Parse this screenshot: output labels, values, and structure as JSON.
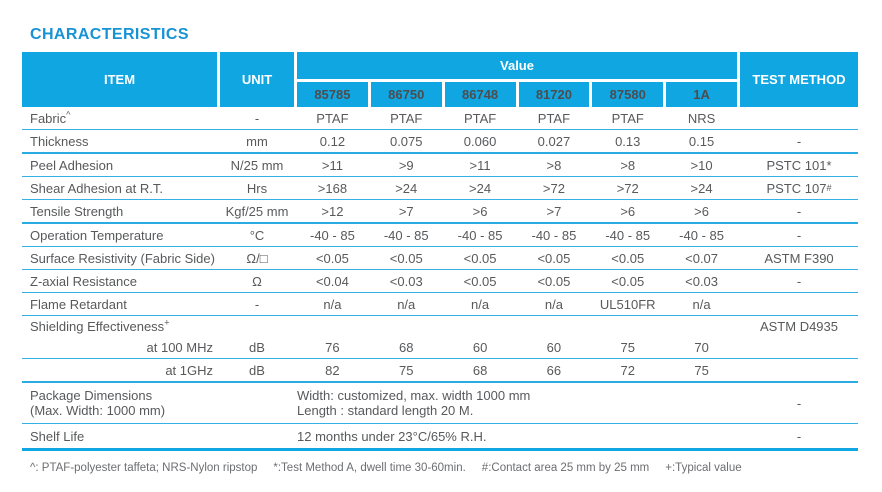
{
  "title": "CHARACTERISTICS",
  "colors": {
    "accent_cyan": "#10A6E2",
    "title_cyan": "#1793D5",
    "header_code_text": "#4D4D4F",
    "body_text": "#58595B"
  },
  "table": {
    "header": {
      "item": "ITEM",
      "unit": "UNIT",
      "value": "Value",
      "codes": [
        "85785",
        "86750",
        "86748",
        "81720",
        "87580",
        "1A"
      ],
      "test_method": "TEST METHOD"
    },
    "rows": [
      {
        "item": "Fabric",
        "item_sup": "^",
        "unit": "-",
        "values": [
          "PTAF",
          "PTAF",
          "PTAF",
          "PTAF",
          "PTAF",
          "NRS"
        ],
        "test": "",
        "border": "thin"
      },
      {
        "item": "Thickness",
        "unit": "mm",
        "values": [
          "0.12",
          "0.075",
          "0.060",
          "0.027",
          "0.13",
          "0.15"
        ],
        "test": "-",
        "border": "thick"
      },
      {
        "item": "Peel Adhesion",
        "unit": "N/25 mm",
        "values": [
          ">11",
          ">9",
          ">11",
          ">8",
          ">8",
          ">10"
        ],
        "test": "PSTC 101*",
        "border": "thin"
      },
      {
        "item": "Shear Adhesion at R.T.",
        "unit": "Hrs",
        "values": [
          ">168",
          ">24",
          ">24",
          ">72",
          ">72",
          ">24"
        ],
        "test": "PSTC 107",
        "test_sup": "#",
        "border": "thin"
      },
      {
        "item": "Tensile Strength",
        "unit": "Kgf/25 mm",
        "values": [
          ">12",
          ">7",
          ">6",
          ">7",
          ">6",
          ">6"
        ],
        "test": "-",
        "border": "thick"
      },
      {
        "item": "Operation Temperature",
        "unit": "°C",
        "values": [
          "-40 - 85",
          "-40 - 85",
          "-40 - 85",
          "-40 - 85",
          "-40 - 85",
          "-40 - 85"
        ],
        "test": "-",
        "border": "thin"
      },
      {
        "item": "Surface Resistivity (Fabric Side)",
        "unit": "Ω/□",
        "values": [
          "<0.05",
          "<0.05",
          "<0.05",
          "<0.05",
          "<0.05",
          "<0.07"
        ],
        "test": "ASTM F390",
        "border": "thin"
      },
      {
        "item": "Z-axial Resistance",
        "unit": "Ω",
        "values": [
          "<0.04",
          "<0.03",
          "<0.05",
          "<0.05",
          "<0.05",
          "<0.03"
        ],
        "test": "-",
        "border": "thin"
      },
      {
        "item": "Flame Retardant",
        "unit": "-",
        "values": [
          "n/a",
          "n/a",
          "n/a",
          "n/a",
          "UL510FR",
          "n/a"
        ],
        "test": "",
        "border": "thin"
      },
      {
        "item": "Shielding Effectiveness",
        "item_sup": "+",
        "unit": "",
        "values": [
          "",
          "",
          "",
          "",
          "",
          ""
        ],
        "test": "ASTM D4935",
        "border": "none",
        "height_class": "row-shield"
      },
      {
        "item": "at 100 MHz",
        "item_align": "right",
        "unit": "dB",
        "values": [
          "76",
          "68",
          "60",
          "60",
          "75",
          "70"
        ],
        "test": "",
        "border": "thin"
      },
      {
        "item": "at 1GHz",
        "item_align": "right",
        "unit": "dB",
        "values": [
          "82",
          "75",
          "68",
          "66",
          "72",
          "75"
        ],
        "test": "",
        "border": "thick"
      },
      {
        "item": "Package Dimensions",
        "item2": "(Max. Width: 1000 mm)",
        "unit": "",
        "span1": "Width: customized, max. width 1000 mm",
        "span2": "Length : standard length 20 M.",
        "test": "-",
        "border": "thin",
        "height_class": "row-pkg"
      },
      {
        "item": "Shelf Life",
        "unit": "",
        "span1": "12 months under 23°C/65% R.H.",
        "test": "-",
        "border": "heavy",
        "height_class": "row-shelf"
      }
    ],
    "footnotes": [
      "^: PTAF-polyester taffeta; NRS-Nylon ripstop",
      "*:Test Method A, dwell time 30-60min.",
      "#:Contact area 25 mm by 25 mm",
      "+:Typical value"
    ]
  }
}
